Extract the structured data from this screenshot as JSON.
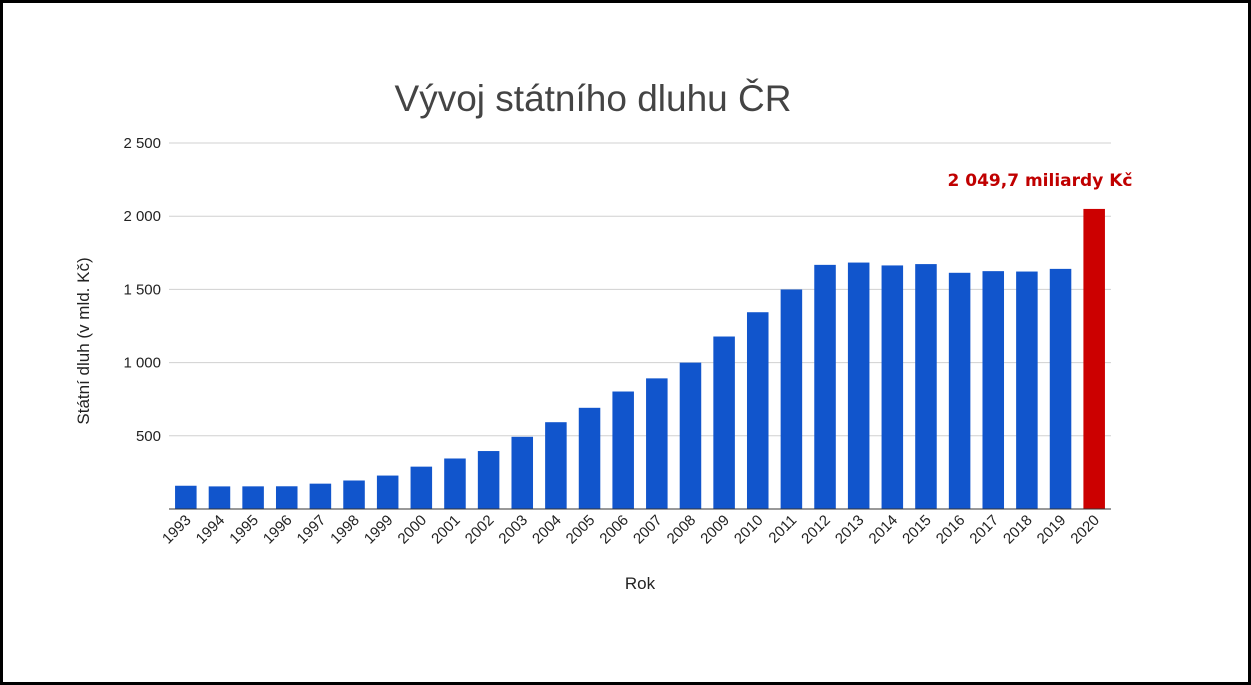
{
  "chart_data": {
    "type": "bar",
    "title": "Vývoj státního dluhu ČR",
    "xlabel": "Rok",
    "ylabel": "Státní dluh (v mld. Kč)",
    "ylim": [
      0,
      2500
    ],
    "yticks": [
      {
        "value": 500,
        "label": "500"
      },
      {
        "value": 1000,
        "label": "1 000"
      },
      {
        "value": 1500,
        "label": "1 500"
      },
      {
        "value": 2000,
        "label": "2 000"
      },
      {
        "value": 2500,
        "label": "2 500"
      }
    ],
    "grid": true,
    "legend": "none",
    "categories": [
      "1993",
      "1994",
      "1995",
      "1996",
      "1997",
      "1998",
      "1999",
      "2000",
      "2001",
      "2002",
      "2003",
      "2004",
      "2005",
      "2006",
      "2007",
      "2008",
      "2009",
      "2010",
      "2011",
      "2012",
      "2013",
      "2014",
      "2015",
      "2016",
      "2017",
      "2018",
      "2019",
      "2020"
    ],
    "values": [
      158.8,
      154.4,
      154.7,
      155.2,
      173.1,
      194.7,
      228.4,
      289.3,
      345.0,
      395.9,
      493.2,
      592.9,
      691.2,
      802.5,
      892.3,
      999.8,
      1178.2,
      1344.1,
      1499.4,
      1667.6,
      1683.3,
      1663.7,
      1672.9,
      1613.4,
      1624.7,
      1622.0,
      1640.2,
      2049.7
    ],
    "bar_color": "#1155cc",
    "highlight": {
      "category": "2020",
      "color": "#cc0000"
    },
    "annotation": {
      "text": "2 049,7 miliardy Kč",
      "color": "#c00000"
    }
  }
}
